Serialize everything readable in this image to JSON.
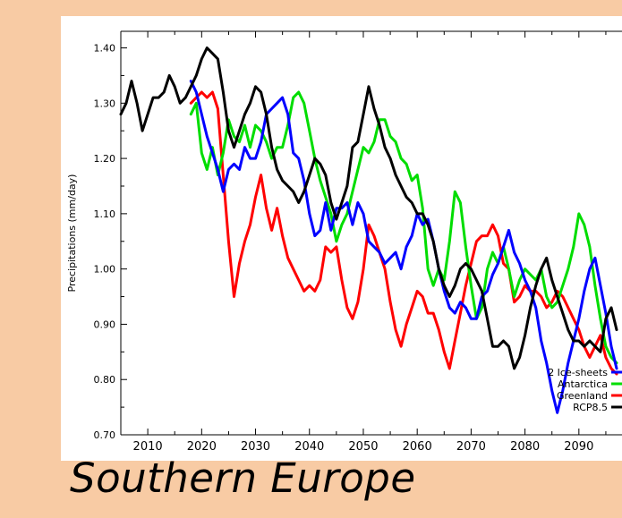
{
  "caption": "Southern Europe",
  "chart_data": {
    "type": "line",
    "title": "",
    "xlabel": "",
    "ylabel": "Precipitations (mm/day)",
    "xlim": [
      2005,
      2098
    ],
    "ylim": [
      0.7,
      1.43
    ],
    "y_ticks": [
      "0.70",
      "0.80",
      "0.90",
      "1.00",
      "1.10",
      "1.20",
      "1.30",
      "1.40"
    ],
    "x_ticks": [
      "2010",
      "2020",
      "2030",
      "2040",
      "2050",
      "2060",
      "2070",
      "2080",
      "2090"
    ],
    "grid": false,
    "legend_position": "bottom-right",
    "series": [
      {
        "name": "2 Ice-sheets",
        "color": "#0000ff",
        "x": [
          2018,
          2019,
          2020,
          2021,
          2022,
          2023,
          2024,
          2025,
          2026,
          2027,
          2028,
          2029,
          2030,
          2031,
          2032,
          2033,
          2034,
          2035,
          2036,
          2037,
          2038,
          2039,
          2040,
          2041,
          2042,
          2043,
          2044,
          2045,
          2046,
          2047,
          2048,
          2049,
          2050,
          2051,
          2052,
          2053,
          2054,
          2055,
          2056,
          2057,
          2058,
          2059,
          2060,
          2061,
          2062,
          2063,
          2064,
          2065,
          2066,
          2067,
          2068,
          2069,
          2070,
          2071,
          2072,
          2073,
          2074,
          2075,
          2076,
          2077,
          2078,
          2079,
          2080,
          2081,
          2082,
          2083,
          2084,
          2085,
          2086,
          2087,
          2088,
          2089,
          2090,
          2091,
          2092,
          2093,
          2094,
          2095,
          2096,
          2097
        ],
        "values": [
          1.34,
          1.32,
          1.28,
          1.24,
          1.21,
          1.18,
          1.14,
          1.18,
          1.19,
          1.18,
          1.22,
          1.2,
          1.2,
          1.23,
          1.28,
          1.29,
          1.3,
          1.31,
          1.28,
          1.21,
          1.2,
          1.16,
          1.1,
          1.06,
          1.07,
          1.12,
          1.07,
          1.11,
          1.11,
          1.12,
          1.08,
          1.12,
          1.1,
          1.05,
          1.04,
          1.03,
          1.01,
          1.02,
          1.03,
          1.0,
          1.04,
          1.06,
          1.1,
          1.08,
          1.09,
          1.05,
          1.0,
          0.96,
          0.93,
          0.92,
          0.94,
          0.93,
          0.91,
          0.91,
          0.95,
          0.96,
          0.99,
          1.01,
          1.04,
          1.07,
          1.03,
          1.01,
          0.98,
          0.96,
          0.93,
          0.87,
          0.83,
          0.78,
          0.74,
          0.78,
          0.83,
          0.87,
          0.91,
          0.96,
          1.0,
          1.02,
          0.97,
          0.92,
          0.86,
          0.82
        ]
      },
      {
        "name": "Antarctica",
        "color": "#00dd00",
        "x": [
          2018,
          2019,
          2020,
          2021,
          2022,
          2023,
          2024,
          2025,
          2026,
          2027,
          2028,
          2029,
          2030,
          2031,
          2032,
          2033,
          2034,
          2035,
          2036,
          2037,
          2038,
          2039,
          2040,
          2041,
          2042,
          2043,
          2044,
          2045,
          2046,
          2047,
          2048,
          2049,
          2050,
          2051,
          2052,
          2053,
          2054,
          2055,
          2056,
          2057,
          2058,
          2059,
          2060,
          2061,
          2062,
          2063,
          2064,
          2065,
          2066,
          2067,
          2068,
          2069,
          2070,
          2071,
          2072,
          2073,
          2074,
          2075,
          2076,
          2077,
          2078,
          2079,
          2080,
          2081,
          2082,
          2083,
          2084,
          2085,
          2086,
          2087,
          2088,
          2089,
          2090,
          2091,
          2092,
          2093,
          2094,
          2095,
          2096,
          2097
        ],
        "values": [
          1.28,
          1.3,
          1.21,
          1.18,
          1.22,
          1.17,
          1.21,
          1.27,
          1.24,
          1.23,
          1.26,
          1.22,
          1.26,
          1.25,
          1.23,
          1.2,
          1.22,
          1.22,
          1.26,
          1.31,
          1.32,
          1.3,
          1.25,
          1.2,
          1.16,
          1.13,
          1.1,
          1.05,
          1.08,
          1.1,
          1.14,
          1.18,
          1.22,
          1.21,
          1.23,
          1.27,
          1.27,
          1.24,
          1.23,
          1.2,
          1.19,
          1.16,
          1.17,
          1.11,
          1.0,
          0.97,
          1.0,
          0.98,
          1.05,
          1.14,
          1.12,
          1.04,
          0.97,
          0.91,
          0.93,
          1.0,
          1.03,
          1.01,
          1.04,
          1.0,
          0.95,
          0.98,
          1.0,
          0.99,
          0.98,
          1.0,
          0.95,
          0.93,
          0.94,
          0.97,
          1.0,
          1.04,
          1.1,
          1.08,
          1.04,
          0.97,
          0.91,
          0.86,
          0.84,
          0.83
        ]
      },
      {
        "name": "Greenland",
        "color": "#ff0000",
        "x": [
          2018,
          2019,
          2020,
          2021,
          2022,
          2023,
          2024,
          2025,
          2026,
          2027,
          2028,
          2029,
          2030,
          2031,
          2032,
          2033,
          2034,
          2035,
          2036,
          2037,
          2038,
          2039,
          2040,
          2041,
          2042,
          2043,
          2044,
          2045,
          2046,
          2047,
          2048,
          2049,
          2050,
          2051,
          2052,
          2053,
          2054,
          2055,
          2056,
          2057,
          2058,
          2059,
          2060,
          2061,
          2062,
          2063,
          2064,
          2065,
          2066,
          2067,
          2068,
          2069,
          2070,
          2071,
          2072,
          2073,
          2074,
          2075,
          2076,
          2077,
          2078,
          2079,
          2080,
          2081,
          2082,
          2083,
          2084,
          2085,
          2086,
          2087,
          2088,
          2089,
          2090,
          2091,
          2092,
          2093,
          2094,
          2095,
          2096,
          2097
        ],
        "values": [
          1.3,
          1.31,
          1.32,
          1.31,
          1.32,
          1.29,
          1.17,
          1.05,
          0.95,
          1.01,
          1.05,
          1.08,
          1.13,
          1.17,
          1.11,
          1.07,
          1.11,
          1.06,
          1.02,
          1.0,
          0.98,
          0.96,
          0.97,
          0.96,
          0.98,
          1.04,
          1.03,
          1.04,
          0.98,
          0.93,
          0.91,
          0.94,
          1.0,
          1.08,
          1.06,
          1.03,
          1.0,
          0.94,
          0.89,
          0.86,
          0.9,
          0.93,
          0.96,
          0.95,
          0.92,
          0.92,
          0.89,
          0.85,
          0.82,
          0.87,
          0.92,
          0.97,
          1.01,
          1.05,
          1.06,
          1.06,
          1.08,
          1.06,
          1.01,
          1.0,
          0.94,
          0.95,
          0.97,
          0.96,
          0.96,
          0.95,
          0.93,
          0.94,
          0.96,
          0.95,
          0.93,
          0.91,
          0.89,
          0.86,
          0.84,
          0.86,
          0.88,
          0.84,
          0.82,
          0.81
        ]
      },
      {
        "name": "RCP8.5",
        "color": "#000000",
        "x": [
          2005,
          2006,
          2007,
          2008,
          2009,
          2010,
          2011,
          2012,
          2013,
          2014,
          2015,
          2016,
          2017,
          2018,
          2019,
          2020,
          2021,
          2022,
          2023,
          2024,
          2025,
          2026,
          2027,
          2028,
          2029,
          2030,
          2031,
          2032,
          2033,
          2034,
          2035,
          2036,
          2037,
          2038,
          2039,
          2040,
          2041,
          2042,
          2043,
          2044,
          2045,
          2046,
          2047,
          2048,
          2049,
          2050,
          2051,
          2052,
          2053,
          2054,
          2055,
          2056,
          2057,
          2058,
          2059,
          2060,
          2061,
          2062,
          2063,
          2064,
          2065,
          2066,
          2067,
          2068,
          2069,
          2070,
          2071,
          2072,
          2073,
          2074,
          2075,
          2076,
          2077,
          2078,
          2079,
          2080,
          2081,
          2082,
          2083,
          2084,
          2085,
          2086,
          2087,
          2088,
          2089,
          2090,
          2091,
          2092,
          2093,
          2094,
          2095,
          2096,
          2097
        ],
        "values": [
          1.28,
          1.3,
          1.34,
          1.3,
          1.25,
          1.28,
          1.31,
          1.31,
          1.32,
          1.35,
          1.33,
          1.3,
          1.31,
          1.33,
          1.35,
          1.38,
          1.4,
          1.39,
          1.38,
          1.32,
          1.25,
          1.22,
          1.25,
          1.28,
          1.3,
          1.33,
          1.32,
          1.28,
          1.22,
          1.18,
          1.16,
          1.15,
          1.14,
          1.12,
          1.14,
          1.17,
          1.2,
          1.19,
          1.17,
          1.12,
          1.09,
          1.12,
          1.15,
          1.22,
          1.23,
          1.28,
          1.33,
          1.29,
          1.26,
          1.22,
          1.2,
          1.17,
          1.15,
          1.13,
          1.12,
          1.1,
          1.1,
          1.08,
          1.05,
          1.0,
          0.97,
          0.95,
          0.97,
          1.0,
          1.01,
          1.0,
          0.98,
          0.96,
          0.91,
          0.86,
          0.86,
          0.87,
          0.86,
          0.82,
          0.84,
          0.88,
          0.93,
          0.97,
          1.0,
          1.02,
          0.98,
          0.95,
          0.92,
          0.89,
          0.87,
          0.87,
          0.86,
          0.87,
          0.86,
          0.85,
          0.91,
          0.93,
          0.89
        ]
      }
    ]
  }
}
